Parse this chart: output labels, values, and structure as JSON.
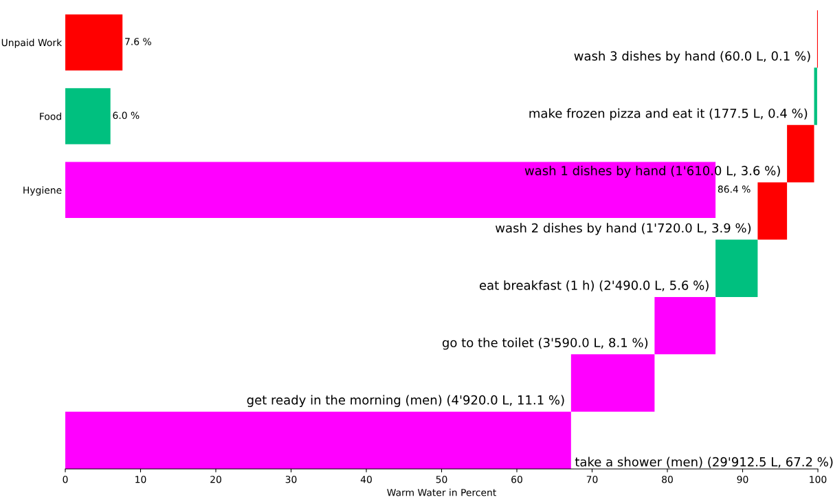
{
  "chart_data": [
    {
      "type": "bar",
      "orientation": "horizontal",
      "categories": [
        "Unpaid Work",
        "Food",
        "Hygiene"
      ],
      "values": [
        7.6,
        6.0,
        86.4
      ],
      "colors": [
        "#ff0000",
        "#00c07f",
        "#ff00ff"
      ],
      "value_labels": [
        "7.6 %",
        "6.0 %",
        "86.4 %"
      ],
      "xlim": [
        0,
        100
      ],
      "tick_labels": "y"
    },
    {
      "type": "bar",
      "orientation": "horizontal",
      "categories": [
        "wash 3 dishes by hand (60.0 L, 0.1 %)",
        "make frozen pizza and eat it (177.5 L, 0.4 %)",
        "wash 1 dishes by hand (1'610.0 L, 3.6 %)",
        "wash 2 dishes by hand (1'720.0 L, 3.9 %)",
        "eat breakfast (1 h) (2'490.0 L, 5.6 %)",
        "go to the toilet (3'590.0 L, 8.1 %)",
        "get ready in the morning (men) (4'920.0 L, 11.1 %)",
        "take a shower (men) (29'912.5 L, 67.2 %)"
      ],
      "base": [
        99.9,
        99.5,
        95.9,
        92.0,
        86.4,
        78.3,
        67.2,
        0
      ],
      "values": [
        0.1,
        0.4,
        3.6,
        3.9,
        5.6,
        8.1,
        11.1,
        67.2
      ],
      "colors": [
        "#ff0000",
        "#00c07f",
        "#ff0000",
        "#ff0000",
        "#00c07f",
        "#ff00ff",
        "#ff00ff",
        "#ff00ff"
      ],
      "xlim": [
        0,
        100
      ],
      "xticks": [
        0,
        10,
        20,
        30,
        40,
        50,
        60,
        70,
        80,
        90,
        100
      ],
      "xlabel": "Warm Water in Percent",
      "tick_labels": "x"
    }
  ]
}
